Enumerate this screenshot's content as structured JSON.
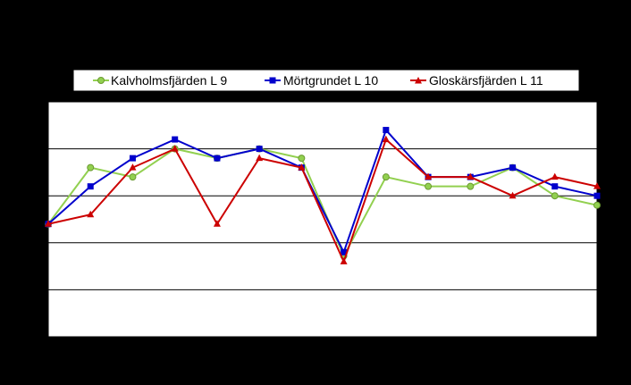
{
  "chart_data": {
    "type": "line",
    "x": [
      1,
      2,
      3,
      4,
      5,
      6,
      7,
      8,
      9,
      10,
      11,
      12,
      13,
      14
    ],
    "ylim": [
      0,
      12.5
    ],
    "y_gridlines": [
      2.5,
      5,
      7.5,
      10
    ],
    "grid": true,
    "legend_position": "top",
    "series": [
      {
        "name": "Kalvholmsfjärden L 9",
        "color": "#92D050",
        "marker": "circle",
        "values": [
          6.0,
          9.0,
          8.5,
          10.0,
          9.5,
          10.0,
          9.5,
          4.3,
          8.5,
          8.0,
          8.0,
          9.0,
          7.5,
          7.0
        ]
      },
      {
        "name": "Mörtgrundet L 10",
        "color": "#0000CC",
        "marker": "square",
        "values": [
          6.0,
          8.0,
          9.5,
          10.5,
          9.5,
          10.0,
          9.0,
          4.5,
          11.0,
          8.5,
          8.5,
          9.0,
          8.0,
          7.5
        ]
      },
      {
        "name": "Gloskärsfjärden L 11",
        "color": "#CC0000",
        "marker": "triangle",
        "values": [
          6.0,
          6.5,
          9.0,
          10.0,
          6.0,
          9.5,
          9.0,
          4.0,
          10.5,
          8.5,
          8.5,
          7.5,
          8.5,
          8.0
        ]
      }
    ]
  }
}
